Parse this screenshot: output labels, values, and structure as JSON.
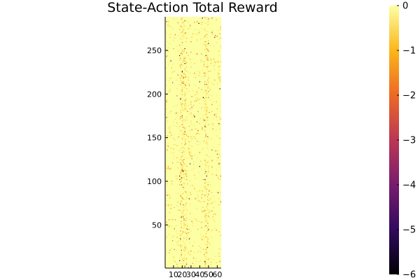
{
  "chart_data": {
    "type": "heatmap",
    "title": "State-Action Total Reward",
    "xlabel": "",
    "ylabel": "",
    "x_range": [
      1,
      64
    ],
    "y_range": [
      1,
      288
    ],
    "x_ticks": [
      10,
      20,
      30,
      40,
      50,
      60
    ],
    "x_tick_labels": [
      "10",
      "20",
      "30",
      "40",
      "50",
      "60"
    ],
    "y_ticks": [
      50,
      100,
      150,
      200,
      250
    ],
    "y_tick_labels": [
      "50",
      "100",
      "150",
      "200",
      "250"
    ],
    "grid": false,
    "colormap": "inferno",
    "colorbar": {
      "range": [
        -6,
        0
      ],
      "ticks": [
        0,
        -1,
        -2,
        -3,
        -4,
        -5,
        -6
      ],
      "tick_labels": [
        "0",
        "−1",
        "−2",
        "−3",
        "−4",
        "−5",
        "−6"
      ],
      "colors": [
        "#000004",
        "#320a5e",
        "#781c6d",
        "#bb3754",
        "#ed6925",
        "#fbb61a",
        "#fcffa4"
      ]
    },
    "value_summary": {
      "dominant_value": 0,
      "sparse_values": [
        -0.5,
        -1,
        -1.5,
        -2,
        -3,
        -5,
        -6
      ],
      "dense_columns": [
        18,
        19,
        20,
        21,
        22,
        23,
        24,
        25,
        46,
        47,
        48,
        49,
        50
      ]
    }
  }
}
